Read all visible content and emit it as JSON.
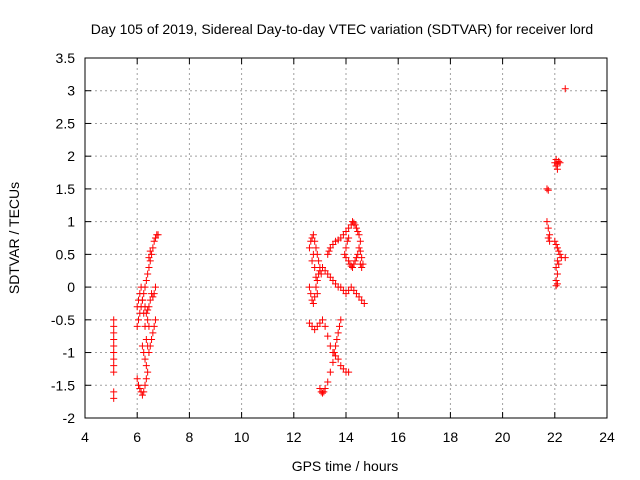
{
  "chart_data": {
    "type": "scatter",
    "title": "Day 105 of 2019, Sidereal Day-to-day VTEC variation (SDTVAR) for receiver lord",
    "xlabel": "GPS time / hours",
    "ylabel": "SDTVAR / TECUs",
    "xlim": [
      4,
      24
    ],
    "ylim": [
      -2,
      3.5
    ],
    "xticks": [
      4,
      6,
      8,
      10,
      12,
      14,
      16,
      18,
      20,
      22,
      24
    ],
    "yticks": [
      -2,
      -1.5,
      -1,
      -0.5,
      0,
      0.5,
      1,
      1.5,
      2,
      2.5,
      3,
      3.5
    ],
    "xtick_labels": [
      "4",
      "6",
      "8",
      "10",
      "12",
      "14",
      "16",
      "18",
      "20",
      "22",
      "24"
    ],
    "ytick_labels": [
      "-2",
      "-1.5",
      "-1",
      "-0.5",
      "0",
      "0.5",
      "1",
      "1.5",
      "2",
      "2.5",
      "3",
      "3.5"
    ],
    "grid": true,
    "marker": "+",
    "color": "#ff0000",
    "series": [
      {
        "name": "SDTVAR",
        "points": [
          [
            5.1,
            -0.5
          ],
          [
            5.1,
            -0.6
          ],
          [
            5.1,
            -0.7
          ],
          [
            5.1,
            -0.8
          ],
          [
            5.1,
            -0.9
          ],
          [
            5.1,
            -1.0
          ],
          [
            5.1,
            -1.1
          ],
          [
            5.1,
            -1.2
          ],
          [
            5.1,
            -1.3
          ],
          [
            5.1,
            -1.6
          ],
          [
            5.1,
            -1.7
          ],
          [
            6.0,
            -1.4
          ],
          [
            6.05,
            -1.5
          ],
          [
            6.1,
            -1.55
          ],
          [
            6.15,
            -1.6
          ],
          [
            6.2,
            -1.65
          ],
          [
            6.25,
            -1.6
          ],
          [
            6.3,
            -1.5
          ],
          [
            6.35,
            -1.4
          ],
          [
            6.4,
            -1.3
          ],
          [
            6.0,
            -0.6
          ],
          [
            6.05,
            -0.5
          ],
          [
            6.1,
            -0.4
          ],
          [
            6.15,
            -0.3
          ],
          [
            6.2,
            -0.2
          ],
          [
            6.25,
            -0.1
          ],
          [
            6.3,
            0.0
          ],
          [
            6.35,
            0.1
          ],
          [
            6.4,
            0.2
          ],
          [
            6.45,
            0.3
          ],
          [
            6.5,
            0.4
          ],
          [
            6.55,
            0.5
          ],
          [
            6.6,
            0.6
          ],
          [
            6.65,
            0.7
          ],
          [
            6.7,
            0.75
          ],
          [
            6.75,
            0.8
          ],
          [
            6.8,
            0.8
          ],
          [
            6.0,
            -0.3
          ],
          [
            6.05,
            -0.2
          ],
          [
            6.1,
            -0.1
          ],
          [
            6.15,
            0.0
          ],
          [
            6.2,
            -0.2
          ],
          [
            6.25,
            -0.4
          ],
          [
            6.3,
            -0.6
          ],
          [
            6.35,
            -0.8
          ],
          [
            6.4,
            -0.9
          ],
          [
            6.45,
            -1.0
          ],
          [
            6.5,
            -0.9
          ],
          [
            6.55,
            -0.8
          ],
          [
            6.6,
            -0.7
          ],
          [
            6.65,
            -0.6
          ],
          [
            6.7,
            -0.5
          ],
          [
            6.2,
            -0.9
          ],
          [
            6.25,
            -1.0
          ],
          [
            6.3,
            -1.1
          ],
          [
            6.35,
            -1.2
          ],
          [
            6.3,
            -0.3
          ],
          [
            6.35,
            -0.4
          ],
          [
            6.4,
            -0.35
          ],
          [
            6.45,
            -0.3
          ],
          [
            6.5,
            -0.2
          ],
          [
            6.55,
            -0.1
          ],
          [
            6.6,
            -0.15
          ],
          [
            6.65,
            -0.1
          ],
          [
            6.7,
            0.0
          ],
          [
            6.4,
            -0.5
          ],
          [
            6.45,
            -0.6
          ],
          [
            6.5,
            0.55
          ],
          [
            6.45,
            0.45
          ],
          [
            12.6,
            0.0
          ],
          [
            12.65,
            -0.1
          ],
          [
            12.7,
            -0.2
          ],
          [
            12.75,
            -0.25
          ],
          [
            12.8,
            -0.15
          ],
          [
            12.85,
            0.0
          ],
          [
            12.9,
            0.1
          ],
          [
            12.95,
            0.2
          ],
          [
            13.0,
            0.25
          ],
          [
            13.1,
            0.3
          ],
          [
            13.2,
            0.25
          ],
          [
            13.3,
            0.2
          ],
          [
            13.4,
            0.15
          ],
          [
            13.5,
            0.1
          ],
          [
            13.6,
            0.05
          ],
          [
            13.7,
            0.0
          ],
          [
            13.8,
            0.0
          ],
          [
            13.9,
            -0.05
          ],
          [
            14.0,
            -0.1
          ],
          [
            14.1,
            -0.05
          ],
          [
            14.2,
            0.0
          ],
          [
            14.3,
            -0.05
          ],
          [
            14.4,
            -0.1
          ],
          [
            14.5,
            -0.15
          ],
          [
            14.6,
            -0.2
          ],
          [
            14.7,
            -0.25
          ],
          [
            12.6,
            0.6
          ],
          [
            12.65,
            0.7
          ],
          [
            12.7,
            0.75
          ],
          [
            12.75,
            0.8
          ],
          [
            12.8,
            0.7
          ],
          [
            12.85,
            0.6
          ],
          [
            12.9,
            0.5
          ],
          [
            12.95,
            0.4
          ],
          [
            13.0,
            0.3
          ],
          [
            13.05,
            0.2
          ],
          [
            12.7,
            0.4
          ],
          [
            12.75,
            0.5
          ],
          [
            12.8,
            0.3
          ],
          [
            12.85,
            0.15
          ],
          [
            12.9,
            -0.1
          ],
          [
            12.6,
            -0.55
          ],
          [
            12.7,
            -0.6
          ],
          [
            12.8,
            -0.65
          ],
          [
            12.9,
            -0.6
          ],
          [
            13.0,
            -0.55
          ],
          [
            13.1,
            -0.5
          ],
          [
            13.2,
            -0.6
          ],
          [
            13.3,
            -0.75
          ],
          [
            13.4,
            -0.9
          ],
          [
            13.5,
            -1.0
          ],
          [
            13.6,
            -1.05
          ],
          [
            13.7,
            -1.1
          ],
          [
            13.8,
            -1.2
          ],
          [
            13.9,
            -1.25
          ],
          [
            14.0,
            -1.3
          ],
          [
            14.1,
            -1.3
          ],
          [
            13.0,
            -1.55
          ],
          [
            13.05,
            -1.6
          ],
          [
            13.1,
            -1.62
          ],
          [
            13.15,
            -1.6
          ],
          [
            13.2,
            -1.55
          ],
          [
            13.3,
            -1.45
          ],
          [
            13.4,
            -1.3
          ],
          [
            13.5,
            -1.15
          ],
          [
            13.55,
            -1.0
          ],
          [
            13.6,
            -0.9
          ],
          [
            13.65,
            -0.8
          ],
          [
            13.7,
            -0.7
          ],
          [
            13.75,
            -0.6
          ],
          [
            13.8,
            -0.5
          ],
          [
            13.3,
            0.5
          ],
          [
            13.35,
            0.55
          ],
          [
            13.4,
            0.6
          ],
          [
            13.5,
            0.65
          ],
          [
            13.6,
            0.7
          ],
          [
            13.7,
            0.72
          ],
          [
            13.8,
            0.75
          ],
          [
            13.9,
            0.8
          ],
          [
            14.0,
            0.85
          ],
          [
            14.1,
            0.9
          ],
          [
            14.2,
            0.95
          ],
          [
            14.25,
            1.0
          ],
          [
            14.3,
            0.98
          ],
          [
            14.35,
            0.95
          ],
          [
            14.4,
            0.9
          ],
          [
            14.45,
            0.85
          ],
          [
            14.5,
            0.8
          ],
          [
            14.55,
            0.7
          ],
          [
            14.5,
            0.6
          ],
          [
            14.45,
            0.5
          ],
          [
            14.4,
            0.45
          ],
          [
            14.35,
            0.4
          ],
          [
            14.3,
            0.35
          ],
          [
            14.25,
            0.3
          ],
          [
            14.2,
            0.32
          ],
          [
            14.15,
            0.35
          ],
          [
            14.1,
            0.4
          ],
          [
            14.0,
            0.45
          ],
          [
            13.95,
            0.5
          ],
          [
            14.0,
            0.6
          ],
          [
            14.05,
            0.7
          ],
          [
            14.1,
            0.75
          ],
          [
            14.55,
            0.35
          ],
          [
            14.6,
            0.3
          ],
          [
            14.65,
            0.35
          ],
          [
            14.6,
            0.45
          ],
          [
            14.55,
            0.55
          ],
          [
            21.7,
            1.5
          ],
          [
            21.75,
            1.48
          ],
          [
            21.7,
            1.0
          ],
          [
            21.75,
            0.9
          ],
          [
            21.8,
            0.8
          ],
          [
            21.75,
            0.75
          ],
          [
            21.8,
            0.7
          ],
          [
            22.0,
            1.9
          ],
          [
            22.05,
            1.95
          ],
          [
            22.1,
            1.88
          ],
          [
            22.15,
            1.92
          ],
          [
            22.2,
            1.9
          ],
          [
            22.05,
            1.85
          ],
          [
            22.1,
            1.8
          ],
          [
            22.0,
            0.7
          ],
          [
            22.05,
            0.65
          ],
          [
            22.1,
            0.6
          ],
          [
            22.15,
            0.55
          ],
          [
            22.2,
            0.5
          ],
          [
            22.25,
            0.45
          ],
          [
            22.1,
            0.4
          ],
          [
            22.15,
            0.35
          ],
          [
            22.05,
            0.3
          ],
          [
            22.1,
            0.2
          ],
          [
            22.05,
            0.1
          ],
          [
            22.1,
            0.05
          ],
          [
            22.05,
            0.02
          ],
          [
            22.4,
            0.45
          ],
          [
            22.4,
            3.03
          ]
        ]
      }
    ]
  }
}
